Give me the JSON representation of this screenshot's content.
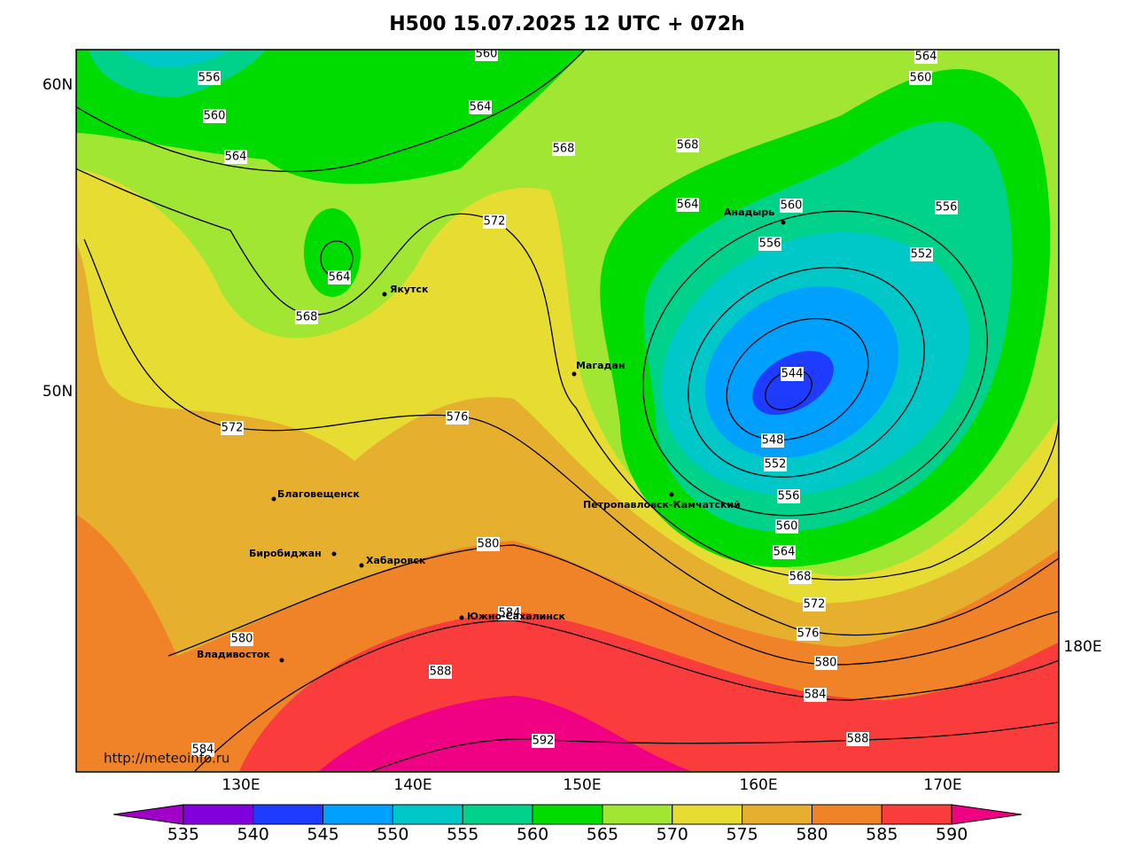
{
  "title": "H500  15.07.2025 12 UTC + 072h",
  "lat_labels": [
    "60N",
    "50N"
  ],
  "lon_labels": [
    "130E",
    "140E",
    "150E",
    "160E",
    "170E",
    "180E"
  ],
  "cities": [
    "Якутск",
    "Магадан",
    "Анадырь",
    "Благовещенск",
    "Биробиджан",
    "Хабаровск",
    "Петропавловск-Камчатский",
    "Южно-Сахалинск",
    "Владивосток"
  ],
  "contour_labels": [
    556,
    560,
    564,
    560,
    564,
    568,
    568,
    564,
    560,
    556,
    556,
    552,
    564,
    560,
    564,
    568,
    572,
    572,
    576,
    544,
    548,
    552,
    556,
    560,
    564,
    568,
    572,
    576,
    580,
    584,
    588,
    580,
    584,
    588,
    592,
    580,
    584
  ],
  "colorbar": {
    "levels": [
      535,
      540,
      545,
      550,
      555,
      560,
      565,
      570,
      575,
      580,
      585,
      590
    ],
    "colors": [
      "#a000c8",
      "#8200dc",
      "#1e3cff",
      "#00a0ff",
      "#00c8c8",
      "#00d28c",
      "#00dc00",
      "#a0e632",
      "#e6dc32",
      "#e6af2d",
      "#f08228",
      "#fa3c3c",
      "#f00082"
    ]
  },
  "credit": "http://meteoinfo.ru"
}
